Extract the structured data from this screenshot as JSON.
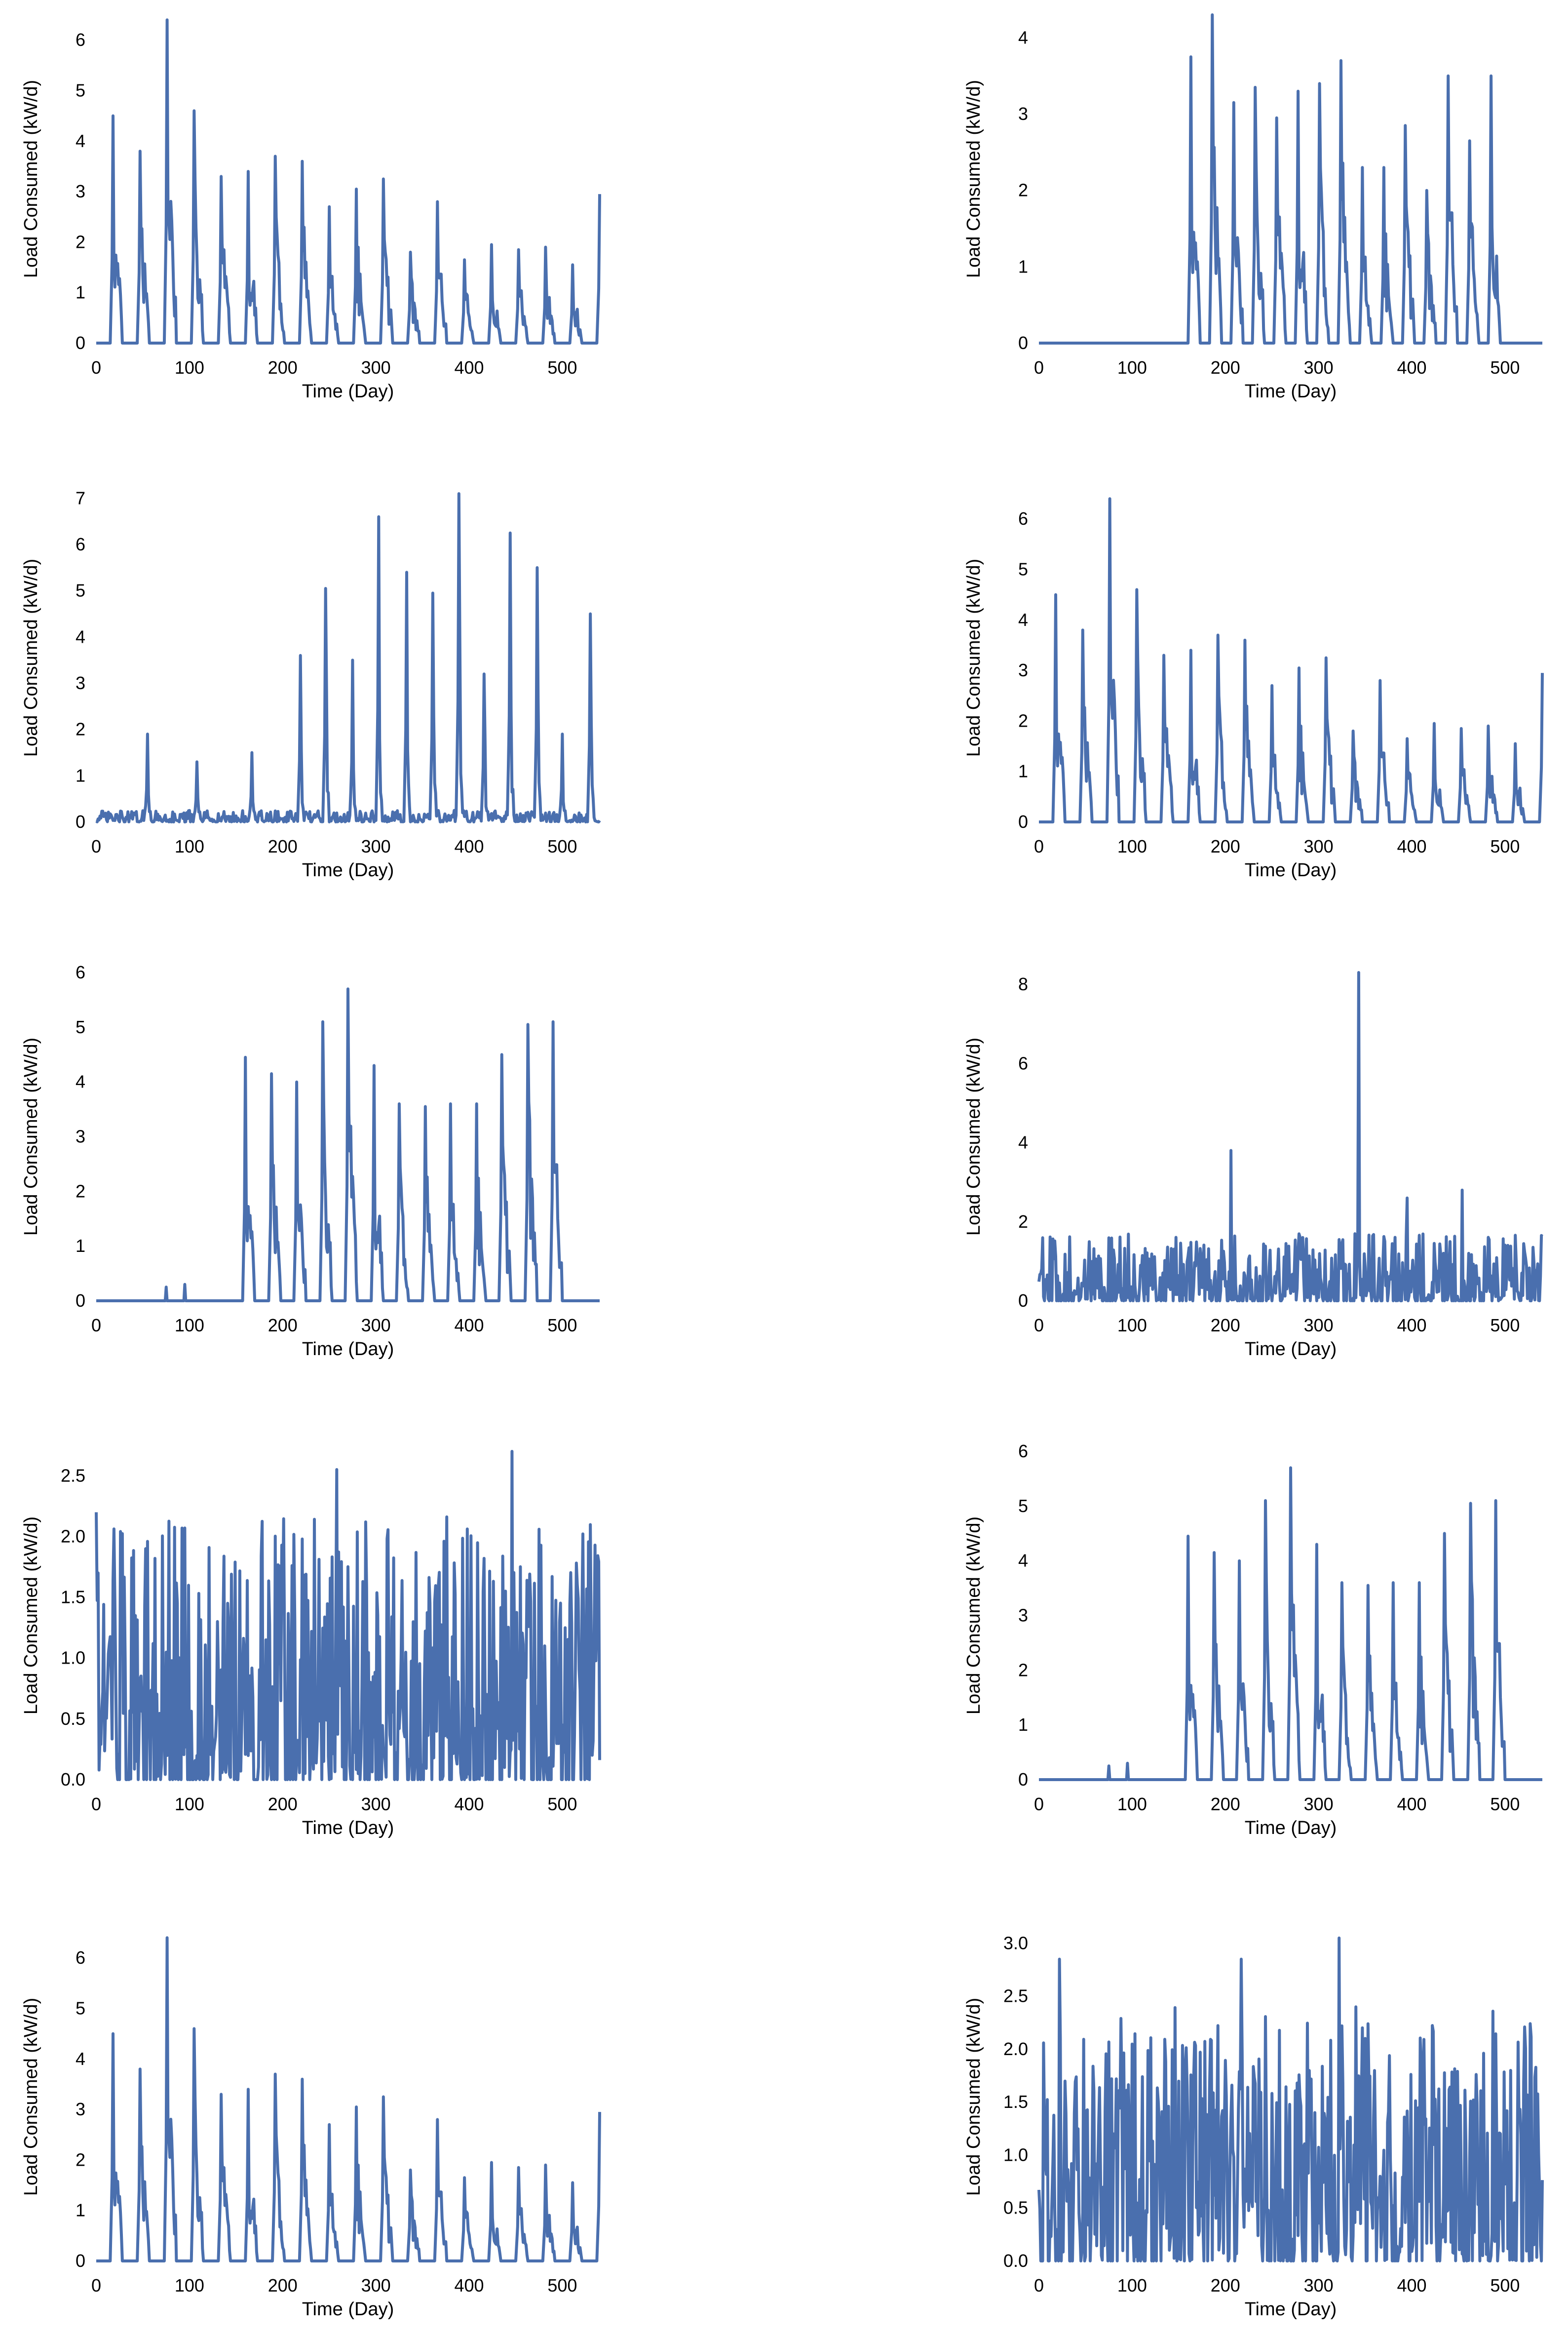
{
  "style": {
    "line_color": "#4a6fae",
    "text_color": "#000000",
    "background": "#ffffff"
  },
  "chart_data": [
    {
      "type": "line",
      "xlabel": "Time (Day)",
      "ylabel": "Load Consumed (kW/d)",
      "xlim": [
        0,
        540
      ],
      "ylim": [
        0,
        6.5
      ],
      "xticks": [
        "0",
        "100",
        "200",
        "300",
        "400",
        "500"
      ],
      "yticks": [
        "0",
        "1",
        "2",
        "3",
        "4",
        "5",
        "6"
      ],
      "pattern": {
        "kind": "peaks",
        "start": 18,
        "period": 29,
        "peaks": [
          4.5,
          3.8,
          6.4,
          4.6,
          3.3,
          3.4,
          3.7,
          3.6,
          2.7,
          3.05,
          3.25,
          1.8,
          2.8,
          1.65,
          1.95,
          1.85,
          1.9,
          1.55,
          2.95
        ]
      }
    },
    {
      "type": "line",
      "xlabel": "Time (Day)",
      "ylabel": "Load Consumed (kW/d)",
      "xlim": [
        0,
        540
      ],
      "ylim": [
        0,
        4.3
      ],
      "xticks": [
        "0",
        "100",
        "200",
        "300",
        "400",
        "500"
      ],
      "yticks": [
        "0",
        "1",
        "2",
        "3",
        "4"
      ],
      "pattern": {
        "kind": "peaks",
        "start": 163,
        "period": 23,
        "peaks": [
          3.75,
          4.3,
          3.15,
          3.35,
          2.95,
          3.3,
          3.4,
          3.7,
          2.3,
          2.3,
          2.85,
          2.0,
          3.5,
          2.65,
          3.5
        ]
      }
    },
    {
      "type": "line",
      "xlabel": "Time (Day)",
      "ylabel": "Load Consumed (kW/d)",
      "xlim": [
        0,
        540
      ],
      "ylim": [
        0,
        7.1
      ],
      "xticks": [
        "0",
        "100",
        "200",
        "300",
        "400",
        "500"
      ],
      "yticks": [
        "0",
        "1",
        "2",
        "3",
        "4",
        "5",
        "6",
        "7"
      ],
      "pattern": {
        "kind": "peaks_low",
        "start": 54,
        "period": 0,
        "peaks": [
          1.9,
          1.3,
          1.5,
          3.6,
          5.05,
          3.5,
          6.6,
          5.4,
          4.95,
          7.1,
          3.2,
          6.25,
          5.5,
          1.9,
          4.5
        ],
        "positions": [
          55,
          108,
          167,
          219,
          246,
          275,
          303,
          333,
          361,
          389,
          416,
          444,
          473,
          500,
          530
        ]
      }
    },
    {
      "type": "line",
      "xlabel": "Time (Day)",
      "ylabel": "Load Consumed (kW/d)",
      "xlim": [
        0,
        540
      ],
      "ylim": [
        0,
        6.5
      ],
      "xticks": [
        "0",
        "100",
        "200",
        "300",
        "400",
        "500"
      ],
      "yticks": [
        "0",
        "1",
        "2",
        "3",
        "4",
        "5",
        "6"
      ],
      "pattern": {
        "kind": "peaks",
        "start": 18,
        "period": 29,
        "peaks": [
          4.5,
          3.8,
          6.4,
          4.6,
          3.3,
          3.4,
          3.7,
          3.6,
          2.7,
          3.05,
          3.25,
          1.8,
          2.8,
          1.65,
          1.95,
          1.85,
          1.9,
          1.55,
          2.95
        ]
      }
    },
    {
      "type": "line",
      "xlabel": "Time (Day)",
      "ylabel": "Load Consumed (kW/d)",
      "xlim": [
        0,
        540
      ],
      "ylim": [
        0,
        6
      ],
      "xticks": [
        "0",
        "100",
        "200",
        "300",
        "400",
        "500"
      ],
      "yticks": [
        "0",
        "1",
        "2",
        "3",
        "4",
        "5",
        "6"
      ],
      "pattern": {
        "kind": "peaks",
        "start": 160,
        "period": 27.5,
        "peaks": [
          4.45,
          4.15,
          4.0,
          5.1,
          5.7,
          4.3,
          3.6,
          3.55,
          3.6,
          3.6,
          4.5,
          5.05,
          5.1
        ],
        "pre": [
          [
            75,
            0.25
          ],
          [
            95,
            0.3
          ]
        ]
      }
    },
    {
      "type": "line",
      "xlabel": "Time (Day)",
      "ylabel": "Load Consumed (kW/d)",
      "xlim": [
        0,
        540
      ],
      "ylim": [
        0,
        8.3
      ],
      "xticks": [
        "0",
        "100",
        "200",
        "300",
        "400",
        "500"
      ],
      "yticks": [
        "0",
        "2",
        "4",
        "6",
        "8"
      ],
      "pattern": {
        "kind": "noise",
        "seed": 7,
        "max": 1.7,
        "spikes": [
          [
            206,
            3.8
          ],
          [
            343,
            8.3
          ],
          [
            395,
            2.6
          ],
          [
            454,
            2.8
          ]
        ]
      }
    },
    {
      "type": "line",
      "xlabel": "Time (Day)",
      "ylabel": "Load Consumed (kW/d)",
      "xlim": [
        0,
        540
      ],
      "ylim": [
        0,
        2.7
      ],
      "xticks": [
        "0",
        "100",
        "200",
        "300",
        "400",
        "500"
      ],
      "yticks": [
        "0.0",
        "0.5",
        "1.0",
        "1.5",
        "2.0",
        "2.5"
      ],
      "pattern": {
        "kind": "noise",
        "seed": 13,
        "max": 2.2,
        "spikes": [
          [
            2,
            1.7
          ],
          [
            258,
            2.55
          ],
          [
            446,
            2.7
          ]
        ]
      }
    },
    {
      "type": "line",
      "xlabel": "Time (Day)",
      "ylabel": "Load Consumed (kW/d)",
      "xlim": [
        0,
        540
      ],
      "ylim": [
        0,
        6
      ],
      "xticks": [
        "0",
        "100",
        "200",
        "300",
        "400",
        "500"
      ],
      "yticks": [
        "0",
        "1",
        "2",
        "3",
        "4",
        "5",
        "6"
      ],
      "pattern": {
        "kind": "peaks",
        "start": 160,
        "period": 27.5,
        "peaks": [
          4.45,
          4.15,
          4.0,
          5.1,
          5.7,
          4.3,
          3.6,
          3.55,
          3.6,
          3.6,
          4.5,
          5.05,
          5.1
        ],
        "pre": [
          [
            75,
            0.25
          ],
          [
            95,
            0.3
          ]
        ]
      }
    },
    {
      "type": "line",
      "xlabel": "Time (Day)",
      "ylabel": "Load Consumed (kW/d)",
      "xlim": [
        0,
        540
      ],
      "ylim": [
        0,
        6.5
      ],
      "xticks": [
        "0",
        "100",
        "200",
        "300",
        "400",
        "500"
      ],
      "yticks": [
        "0",
        "1",
        "2",
        "3",
        "4",
        "5",
        "6"
      ],
      "pattern": {
        "kind": "peaks",
        "start": 18,
        "period": 29,
        "peaks": [
          4.5,
          3.8,
          6.4,
          4.6,
          3.3,
          3.4,
          3.7,
          3.6,
          2.7,
          3.05,
          3.25,
          1.8,
          2.8,
          1.65,
          1.95,
          1.85,
          1.9,
          1.55,
          2.95
        ]
      }
    },
    {
      "type": "line",
      "xlabel": "Time (Day)",
      "ylabel": "Load Consumed (kW/d)",
      "xlim": [
        0,
        540
      ],
      "ylim": [
        0,
        3.1
      ],
      "xticks": [
        "0",
        "100",
        "200",
        "300",
        "400",
        "500"
      ],
      "yticks": [
        "0.0",
        "0.5",
        "1.0",
        "1.5",
        "2.0",
        "2.5",
        "3.0"
      ],
      "pattern": {
        "kind": "noise",
        "seed": 29,
        "max": 2.4,
        "spikes": [
          [
            22,
            2.85
          ],
          [
            217,
            2.85
          ],
          [
            322,
            3.05
          ]
        ]
      }
    }
  ]
}
